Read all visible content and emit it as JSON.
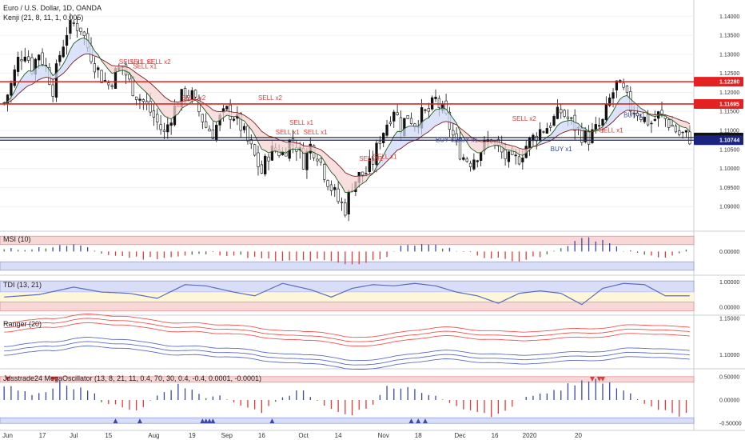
{
  "chart_data": {
    "type": "candlestick",
    "title": "Euro / U.S. Dollar, 1D, OANDA",
    "main": {
      "ylim": [
        1.085,
        1.143
      ],
      "y_ticks": [
        "1.14000",
        "1.13500",
        "1.13000",
        "1.12500",
        "1.12000",
        "1.11500",
        "1.11000",
        "1.10500",
        "1.10000",
        "1.09500",
        "1.09000"
      ],
      "y_tick_values": [
        1.14,
        1.135,
        1.13,
        1.125,
        1.12,
        1.115,
        1.11,
        1.105,
        1.1,
        1.095,
        1.09
      ],
      "kenji_label": "Kenji (21, 8, 11, 1, 0.005)",
      "hlines": [
        {
          "value": 1.1228,
          "label": "1.12280",
          "color": "#e52020"
        },
        {
          "value": 1.11695,
          "label": "1.11695",
          "color": "#e52020"
        },
        {
          "value": 1.10813,
          "label": "1.10813",
          "color": "#111111"
        },
        {
          "value": 1.10744,
          "label": "1.10744",
          "color": "#1a237e"
        }
      ],
      "close_anchors": [
        [
          0,
          1.1172
        ],
        [
          2,
          1.122
        ],
        [
          4,
          1.1285
        ],
        [
          6,
          1.131
        ],
        [
          8,
          1.1265
        ],
        [
          10,
          1.1305
        ],
        [
          12,
          1.1265
        ],
        [
          14,
          1.121
        ],
        [
          16,
          1.13
        ],
        [
          18,
          1.136
        ],
        [
          20,
          1.138
        ],
        [
          22,
          1.137
        ],
        [
          24,
          1.132
        ],
        [
          26,
          1.1275
        ],
        [
          28,
          1.124
        ],
        [
          30,
          1.122
        ],
        [
          32,
          1.125
        ],
        [
          34,
          1.127
        ],
        [
          36,
          1.1225
        ],
        [
          38,
          1.1195
        ],
        [
          40,
          1.1175
        ],
        [
          42,
          1.115
        ],
        [
          44,
          1.112
        ],
        [
          46,
          1.109
        ],
        [
          48,
          1.114
        ],
        [
          50,
          1.1175
        ],
        [
          52,
          1.12
        ],
        [
          54,
          1.119
        ],
        [
          56,
          1.115
        ],
        [
          58,
          1.111
        ],
        [
          60,
          1.1095
        ],
        [
          62,
          1.113
        ],
        [
          64,
          1.115
        ],
        [
          66,
          1.114
        ],
        [
          68,
          1.111
        ],
        [
          70,
          1.107
        ],
        [
          72,
          1.103
        ],
        [
          74,
          1.099
        ],
        [
          76,
          1.104
        ],
        [
          78,
          1.105
        ],
        [
          80,
          1.104
        ],
        [
          82,
          1.107
        ],
        [
          84,
          1.106
        ],
        [
          86,
          1.102
        ],
        [
          88,
          1.106
        ],
        [
          90,
          1.104
        ],
        [
          92,
          1.099
        ],
        [
          94,
          1.095
        ],
        [
          96,
          1.0915
        ],
        [
          98,
          1.0895
        ],
        [
          100,
          1.096
        ],
        [
          102,
          1.098
        ],
        [
          104,
          1.099
        ],
        [
          106,
          1.102
        ],
        [
          108,
          1.108
        ],
        [
          110,
          1.112
        ],
        [
          112,
          1.116
        ],
        [
          114,
          1.111
        ],
        [
          116,
          1.114
        ],
        [
          118,
          1.112
        ],
        [
          120,
          1.114
        ],
        [
          122,
          1.115
        ],
        [
          124,
          1.118
        ],
        [
          126,
          1.115
        ],
        [
          128,
          1.111
        ],
        [
          130,
          1.106
        ],
        [
          132,
          1.103
        ],
        [
          134,
          1.102
        ],
        [
          136,
          1.104
        ],
        [
          138,
          1.106
        ],
        [
          140,
          1.108
        ],
        [
          142,
          1.105
        ],
        [
          144,
          1.103
        ],
        [
          146,
          1.1015
        ],
        [
          148,
          1.103
        ],
        [
          150,
          1.106
        ],
        [
          152,
          1.108
        ],
        [
          154,
          1.11
        ],
        [
          156,
          1.111
        ],
        [
          158,
          1.113
        ],
        [
          160,
          1.115
        ],
        [
          162,
          1.113
        ],
        [
          164,
          1.111
        ],
        [
          166,
          1.109
        ],
        [
          168,
          1.108
        ],
        [
          170,
          1.11
        ],
        [
          172,
          1.112
        ],
        [
          174,
          1.118
        ],
        [
          176,
          1.122
        ],
        [
          178,
          1.12
        ],
        [
          180,
          1.116
        ],
        [
          182,
          1.115
        ],
        [
          184,
          1.113
        ],
        [
          186,
          1.112
        ],
        [
          188,
          1.114
        ],
        [
          190,
          1.113
        ],
        [
          192,
          1.111
        ],
        [
          194,
          1.109
        ],
        [
          196,
          1.1085
        ],
        [
          197,
          1.1081
        ]
      ],
      "signals": [
        {
          "text": "SELL x1",
          "i": 33,
          "y": 1.1275,
          "color": "#e53935"
        },
        {
          "text": "SELL x1",
          "i": 36,
          "y": 1.1275,
          "color": "#e53935"
        },
        {
          "text": "SELL x2",
          "i": 41,
          "y": 1.1275,
          "color": "#e53935"
        },
        {
          "text": "SELL x1",
          "i": 37,
          "y": 1.1263,
          "color": "#e53935"
        },
        {
          "text": "SELL x2",
          "i": 51,
          "y": 1.118,
          "color": "#e53935"
        },
        {
          "text": "SELL x2",
          "i": 73,
          "y": 1.118,
          "color": "#e53935"
        },
        {
          "text": "SELL x1",
          "i": 82,
          "y": 1.1115,
          "color": "#e53935"
        },
        {
          "text": "SELL x1",
          "i": 78,
          "y": 1.109,
          "color": "#e53935"
        },
        {
          "text": "SELL x1",
          "i": 86,
          "y": 1.109,
          "color": "#e53935"
        },
        {
          "text": "SELL x1",
          "i": 106,
          "y": 1.1025,
          "color": "#e53935"
        },
        {
          "text": "SELL x1",
          "i": 102,
          "y": 1.102,
          "color": "#e53935"
        },
        {
          "text": "BUY x1",
          "i": 124,
          "y": 1.107,
          "color": "#3949ab"
        },
        {
          "text": "BUY x1",
          "i": 130,
          "y": 1.107,
          "color": "#3949ab"
        },
        {
          "text": "SELL x2",
          "i": 146,
          "y": 1.1125,
          "color": "#e53935"
        },
        {
          "text": "BUY x1",
          "i": 157,
          "y": 1.1045,
          "color": "#3949ab"
        },
        {
          "text": "BUY x1",
          "i": 178,
          "y": 1.1135,
          "color": "#3949ab"
        },
        {
          "text": "SELL x1",
          "i": 171,
          "y": 1.1095,
          "color": "#e53935"
        }
      ]
    },
    "msi": {
      "label": "MSI (10)",
      "ylim": [
        -0.12,
        0.1
      ],
      "tick": "0.00000",
      "upper_band": [
        0.04,
        0.09
      ],
      "lower_band": [
        -0.11,
        -0.06
      ],
      "anchors": [
        [
          0,
          0.01
        ],
        [
          10,
          0.02
        ],
        [
          20,
          0.04
        ],
        [
          30,
          -0.02
        ],
        [
          40,
          -0.04
        ],
        [
          50,
          -0.03
        ],
        [
          60,
          -0.01
        ],
        [
          70,
          -0.03
        ],
        [
          80,
          -0.06
        ],
        [
          90,
          -0.05
        ],
        [
          100,
          -0.08
        ],
        [
          110,
          -0.03
        ],
        [
          115,
          0.04
        ],
        [
          120,
          0.04
        ],
        [
          125,
          0.03
        ],
        [
          132,
          0.0
        ],
        [
          140,
          -0.04
        ],
        [
          148,
          -0.05
        ],
        [
          155,
          -0.03
        ],
        [
          160,
          0.02
        ],
        [
          166,
          0.08
        ],
        [
          172,
          0.06
        ],
        [
          178,
          0.01
        ],
        [
          184,
          -0.02
        ],
        [
          190,
          -0.04
        ],
        [
          197,
          0.01
        ]
      ]
    },
    "tdi": {
      "label": "TDI (13, 21)",
      "ylim": [
        -0.2,
        1.15
      ],
      "ticks": [
        "1.00000",
        "0.00000"
      ],
      "upper_band": [
        0.6,
        1.05
      ],
      "lower_band": [
        -0.15,
        0.2
      ],
      "anchors": [
        [
          0,
          0.4
        ],
        [
          10,
          0.5
        ],
        [
          20,
          0.8
        ],
        [
          28,
          0.6
        ],
        [
          36,
          0.55
        ],
        [
          44,
          0.35
        ],
        [
          52,
          0.9
        ],
        [
          58,
          0.85
        ],
        [
          66,
          0.6
        ],
        [
          72,
          0.45
        ],
        [
          80,
          0.95
        ],
        [
          88,
          0.7
        ],
        [
          94,
          0.4
        ],
        [
          100,
          0.75
        ],
        [
          106,
          0.9
        ],
        [
          112,
          0.85
        ],
        [
          118,
          0.95
        ],
        [
          124,
          0.85
        ],
        [
          130,
          0.6
        ],
        [
          136,
          0.45
        ],
        [
          142,
          0.15
        ],
        [
          148,
          0.55
        ],
        [
          154,
          0.65
        ],
        [
          160,
          0.55
        ],
        [
          166,
          0.1
        ],
        [
          172,
          0.75
        ],
        [
          178,
          0.95
        ],
        [
          184,
          0.9
        ],
        [
          190,
          0.45
        ],
        [
          197,
          0.45
        ]
      ]
    },
    "ranger": {
      "label": "Ranger (20)",
      "ylim": [
        1.085,
        1.15
      ],
      "ticks": [
        "1.15000",
        "1.10000"
      ]
    },
    "mega": {
      "label": "Jdsstrade24 MegaOscillator (13, 8, 21, 11, 0.4, 70, 30, 0.4, -0.4, 0.0001, -0.0001)",
      "ylim": [
        -0.6,
        0.6
      ],
      "ticks": [
        "0.50000",
        "0.00000",
        "-0.50000"
      ],
      "anchors": [
        [
          0,
          0.3
        ],
        [
          8,
          0.1
        ],
        [
          16,
          0.35
        ],
        [
          24,
          0.2
        ],
        [
          30,
          -0.1
        ],
        [
          38,
          -0.2
        ],
        [
          44,
          0.05
        ],
        [
          50,
          0.3
        ],
        [
          56,
          0.1
        ],
        [
          62,
          0.05
        ],
        [
          68,
          -0.15
        ],
        [
          74,
          -0.3
        ],
        [
          80,
          0.1
        ],
        [
          86,
          0.2
        ],
        [
          92,
          -0.1
        ],
        [
          98,
          -0.35
        ],
        [
          104,
          -0.2
        ],
        [
          110,
          0.25
        ],
        [
          116,
          0.3
        ],
        [
          122,
          0.15
        ],
        [
          128,
          -0.1
        ],
        [
          134,
          -0.25
        ],
        [
          140,
          -0.35
        ],
        [
          146,
          -0.1
        ],
        [
          152,
          0.1
        ],
        [
          158,
          0.2
        ],
        [
          164,
          0.35
        ],
        [
          170,
          0.45
        ],
        [
          176,
          0.3
        ],
        [
          182,
          0.05
        ],
        [
          188,
          -0.2
        ],
        [
          194,
          -0.3
        ],
        [
          197,
          -0.25
        ]
      ],
      "down_markers": [
        1,
        14,
        15,
        169,
        171,
        172
      ],
      "up_markers": [
        32,
        39,
        57,
        58,
        59,
        60,
        77,
        117,
        119,
        121
      ]
    },
    "x_labels": [
      {
        "text": "Jun",
        "i": 1
      },
      {
        "text": "17",
        "i": 11
      },
      {
        "text": "Jul",
        "i": 20
      },
      {
        "text": "15",
        "i": 30
      },
      {
        "text": "Aug",
        "i": 43
      },
      {
        "text": "19",
        "i": 54
      },
      {
        "text": "Sep",
        "i": 64
      },
      {
        "text": "16",
        "i": 74
      },
      {
        "text": "Oct",
        "i": 86
      },
      {
        "text": "14",
        "i": 96
      },
      {
        "text": "Nov",
        "i": 109
      },
      {
        "text": "18",
        "i": 119
      },
      {
        "text": "Dec",
        "i": 131
      },
      {
        "text": "16",
        "i": 141
      },
      {
        "text": "2020",
        "i": 151
      },
      {
        "text": "20",
        "i": 165
      }
    ],
    "num_bars": 198
  },
  "colors": {
    "up": "#111111",
    "down": "#ffffff",
    "sell": "#e53935",
    "buy": "#3949ab",
    "band_red": "#f8d7d7",
    "band_blue": "#d9def8",
    "band_yellow": "#fdf6d8"
  }
}
